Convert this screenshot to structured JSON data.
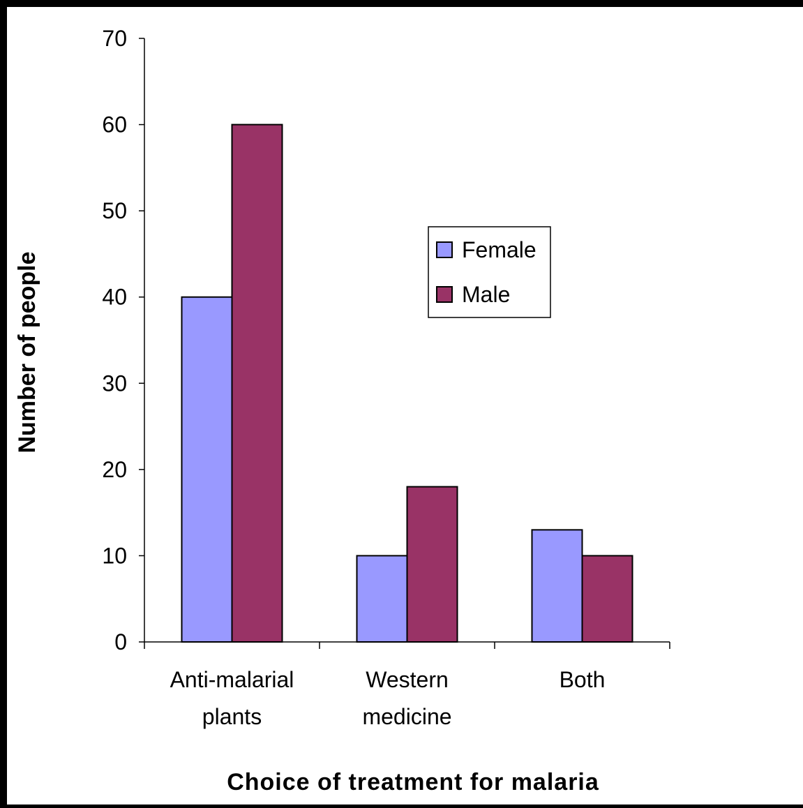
{
  "chart_data": {
    "type": "bar",
    "title": "",
    "xlabel": "Choice of treatment for malaria",
    "ylabel": "Number of people",
    "ylim": [
      0,
      70
    ],
    "yticks": [
      "0",
      "10",
      "20",
      "30",
      "40",
      "50",
      "60",
      "70"
    ],
    "categories": [
      [
        "Anti-malarial",
        "plants"
      ],
      [
        "Western",
        "medicine"
      ],
      [
        "Both"
      ]
    ],
    "series": [
      {
        "name": "Female",
        "values": [
          40,
          10,
          13
        ],
        "color": "#9999ff"
      },
      {
        "name": "Male",
        "values": [
          60,
          18,
          10
        ],
        "color": "#993366"
      }
    ],
    "grid": false,
    "legend": "upper-right-inside"
  }
}
